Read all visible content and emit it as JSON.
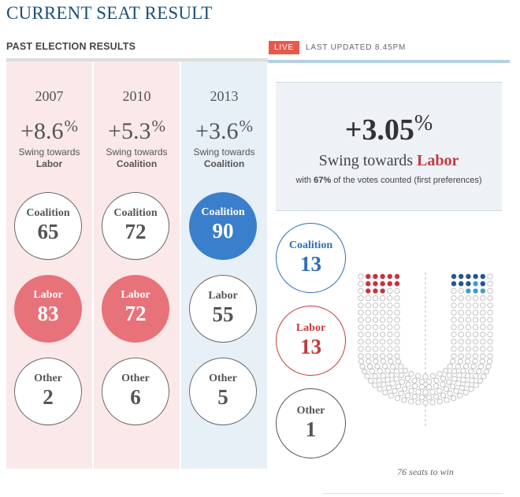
{
  "title": "CURRENT SEAT RESULT",
  "past": {
    "heading": "PAST ELECTION RESULTS",
    "columns": [
      {
        "year": "2007",
        "swing": "+8.6",
        "pct": "%",
        "swing_label": "Swing towards",
        "swing_party": "Labor",
        "results": [
          {
            "party": "Coalition",
            "seats": "65"
          },
          {
            "party": "Labor",
            "seats": "83"
          },
          {
            "party": "Other",
            "seats": "2"
          }
        ]
      },
      {
        "year": "2010",
        "swing": "+5.3",
        "pct": "%",
        "swing_label": "Swing towards",
        "swing_party": "Coalition",
        "results": [
          {
            "party": "Coalition",
            "seats": "72"
          },
          {
            "party": "Labor",
            "seats": "72"
          },
          {
            "party": "Other",
            "seats": "6"
          }
        ]
      },
      {
        "year": "2013",
        "swing": "+3.6",
        "pct": "%",
        "swing_label": "Swing towards",
        "swing_party": "Coalition",
        "results": [
          {
            "party": "Coalition",
            "seats": "90"
          },
          {
            "party": "Labor",
            "seats": "55"
          },
          {
            "party": "Other",
            "seats": "5"
          }
        ]
      }
    ]
  },
  "live": {
    "badge": "LIVE",
    "updated": "LAST UPDATED 8.45PM"
  },
  "current": {
    "swing": "+3.05",
    "pct": "%",
    "swing_label": "Swing towards",
    "swing_party": "Labor",
    "counted_prefix": "with",
    "counted_value": "67%",
    "counted_suffix": "of the votes counted (first preferences)",
    "results": [
      {
        "party": "Coalition",
        "seats": "13"
      },
      {
        "party": "Labor",
        "seats": "13"
      },
      {
        "party": "Other",
        "seats": "1"
      }
    ]
  },
  "hemicycle": {
    "labor_seats": 13,
    "coalition_seats": 13,
    "labor_color": "#c8333d",
    "coalition_dark_color": "#24568f",
    "coalition_light_color": "#3d9fc9",
    "empty_color": "#bbbbbb"
  },
  "seats_to_win": "76 seats to win",
  "colors": {
    "title": "#1d4f7a",
    "labor": "#e8727a",
    "coalition": "#3a7fcb",
    "live": "#e8584c"
  }
}
